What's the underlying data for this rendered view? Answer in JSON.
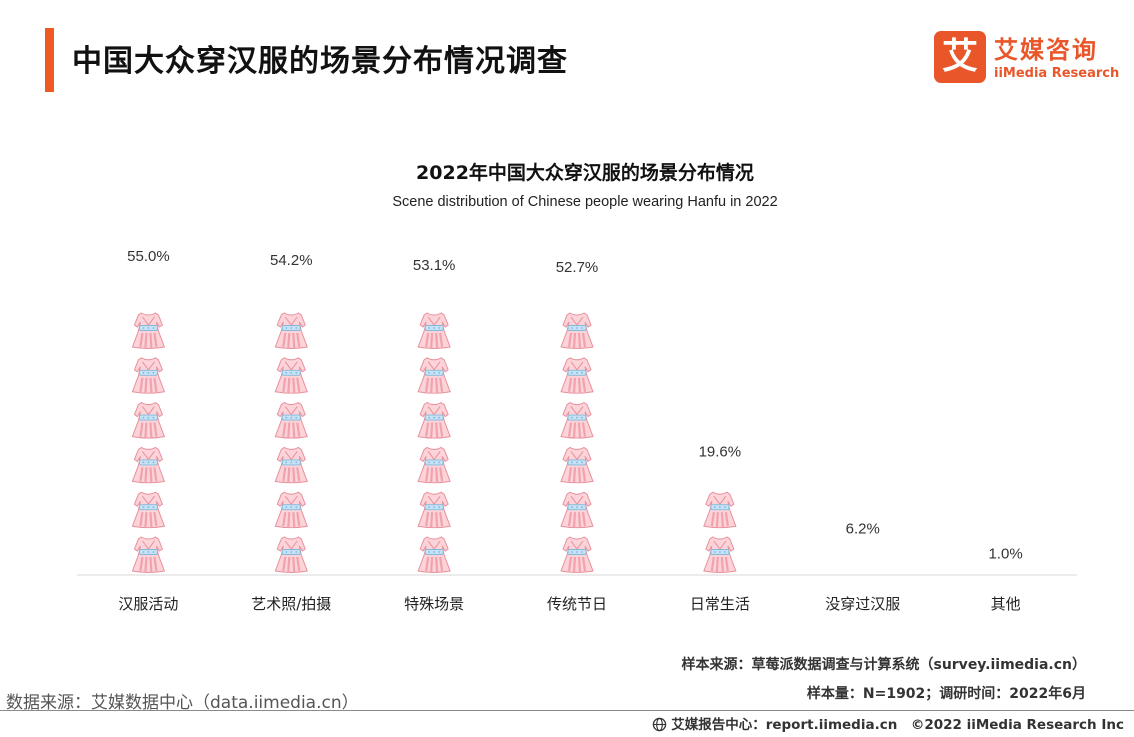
{
  "header": {
    "title": "中国大众穿汉服的场景分布情况调查",
    "accent_color": "#ee5a24"
  },
  "logo": {
    "icon": "ai-logo-icon",
    "mark": "艾",
    "cn": "艾媒咨询",
    "en": "iiMedia Research",
    "color": "#e8562a"
  },
  "chart_data": {
    "type": "bar",
    "title": "2022年中国大众穿汉服的场景分布情况",
    "subtitle": "Scene distribution of Chinese people wearing Hanfu in 2022",
    "categories": [
      "汉服活动",
      "艺术照/拍摄",
      "特殊场景",
      "传统节日",
      "日常生活",
      "没穿过汉服",
      "其他"
    ],
    "values": [
      55.0,
      54.2,
      53.1,
      52.7,
      19.6,
      6.2,
      1.0
    ],
    "value_labels": [
      "55.0%",
      "54.2%",
      "53.1%",
      "52.7%",
      "19.6%",
      "6.2%",
      "1.0%"
    ],
    "unit": "%",
    "icon_value": 8,
    "icon": "hanfu-dress-icon",
    "grid": false,
    "legend": "none",
    "colors": {
      "dress_fill": "#fbd3d8",
      "dress_stripe": "#f0a3ae",
      "dress_outline": "#e8909c",
      "sash": "#c6e2f5",
      "sash_outline": "#84b9db",
      "axis": "#d9d9d9"
    }
  },
  "sources": {
    "left": "数据来源：艾媒数据中心（data.iimedia.cn）",
    "note1": "样本来源：草莓派数据调查与计算系统（survey.iimedia.cn）",
    "note2": "样本量：N=1902；调研时间：2022年6月"
  },
  "footer": {
    "icon": "globe-icon",
    "text": "艾媒报告中心：report.iimedia.cn　©2022  iiMedia Research  Inc"
  }
}
